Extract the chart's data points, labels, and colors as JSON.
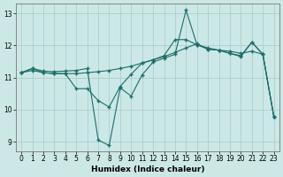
{
  "xlabel": "Humidex (Indice chaleur)",
  "ylabel": "",
  "background_color": "#cce8e6",
  "grid_color": "#aacfcc",
  "line_color": "#1a6e6a",
  "xlim": [
    -0.5,
    23.5
  ],
  "ylim": [
    8.7,
    13.3
  ],
  "yticks": [
    9,
    10,
    11,
    12,
    13
  ],
  "xticks": [
    0,
    1,
    2,
    3,
    4,
    5,
    6,
    7,
    8,
    9,
    10,
    11,
    12,
    13,
    14,
    15,
    16,
    17,
    18,
    19,
    20,
    21,
    22,
    23
  ],
  "line1_x": [
    0,
    1,
    2,
    3,
    4,
    5,
    6,
    7,
    8,
    9,
    10,
    11,
    12,
    13,
    14,
    15,
    16,
    17,
    18,
    19,
    20,
    21,
    22,
    23
  ],
  "line1_y": [
    11.15,
    11.28,
    11.15,
    11.12,
    11.12,
    10.65,
    10.65,
    10.28,
    10.08,
    10.72,
    11.1,
    11.45,
    11.55,
    11.68,
    12.18,
    12.18,
    12.02,
    11.88,
    11.85,
    11.75,
    11.68,
    12.1,
    11.72,
    9.78
  ],
  "line2_x": [
    0,
    1,
    2,
    3,
    4,
    5,
    6,
    7,
    8,
    9,
    10,
    11,
    12,
    13,
    14,
    15,
    16,
    17,
    18,
    19,
    20,
    21,
    22,
    23
  ],
  "line2_y": [
    11.15,
    11.28,
    11.2,
    11.18,
    11.2,
    11.22,
    11.28,
    9.05,
    8.88,
    10.68,
    10.42,
    11.08,
    11.48,
    11.6,
    11.72,
    13.1,
    12.02,
    11.92,
    11.85,
    11.75,
    11.65,
    12.1,
    11.72,
    9.78
  ],
  "line3_x": [
    0,
    1,
    2,
    3,
    4,
    5,
    6,
    7,
    8,
    9,
    10,
    11,
    12,
    13,
    14,
    15,
    16,
    17,
    18,
    19,
    20,
    21,
    22,
    23
  ],
  "line3_y": [
    11.15,
    11.22,
    11.15,
    11.12,
    11.12,
    11.12,
    11.15,
    11.18,
    11.22,
    11.28,
    11.35,
    11.45,
    11.55,
    11.65,
    11.78,
    11.92,
    12.05,
    11.88,
    11.85,
    11.82,
    11.75,
    11.82,
    11.72,
    9.78
  ]
}
